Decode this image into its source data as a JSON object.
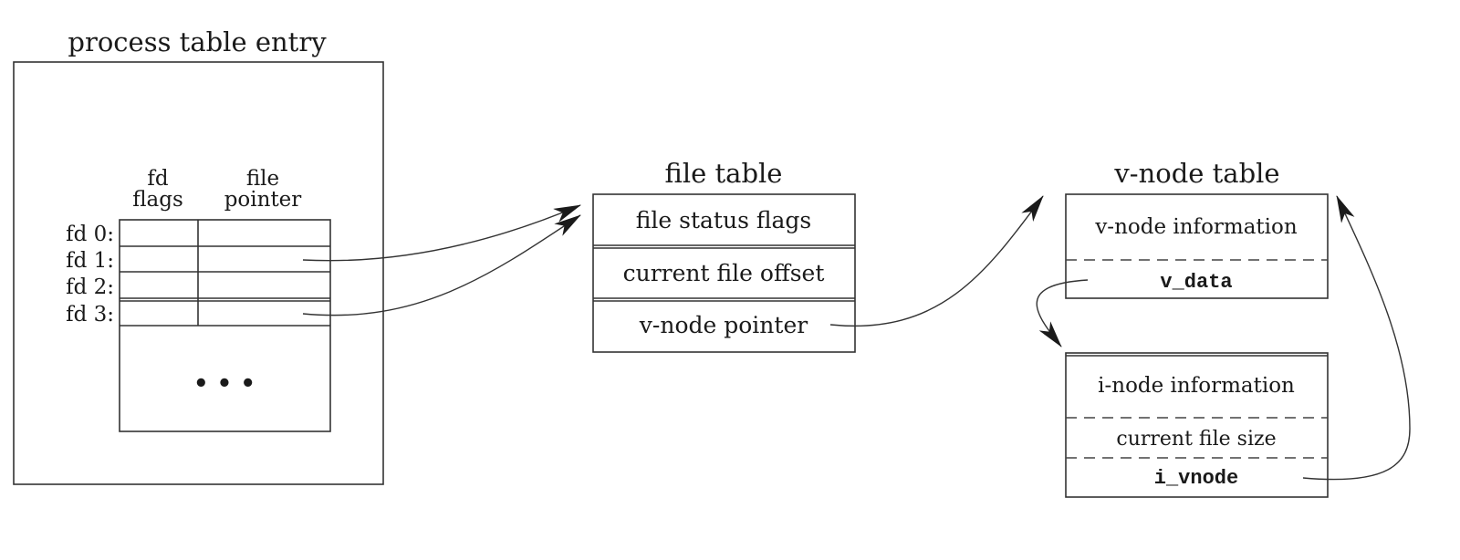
{
  "process_table": {
    "title": "process table entry",
    "col_fd_flags": [
      "fd",
      "flags"
    ],
    "col_file_pointer": [
      "file",
      "pointer"
    ],
    "rows": [
      "fd 0:",
      "fd 1:",
      "fd 2:",
      "fd 3:"
    ],
    "ellipsis": "• • •"
  },
  "file_table": {
    "title": "file table",
    "cells": [
      "file status flags",
      "current file offset",
      "v-node pointer"
    ]
  },
  "vnode_table": {
    "title": "v-node table",
    "vnode_cells": [
      "v-node information",
      "v_data"
    ],
    "inode_cells": [
      "i-node information",
      "current file size",
      "i_vnode"
    ]
  }
}
